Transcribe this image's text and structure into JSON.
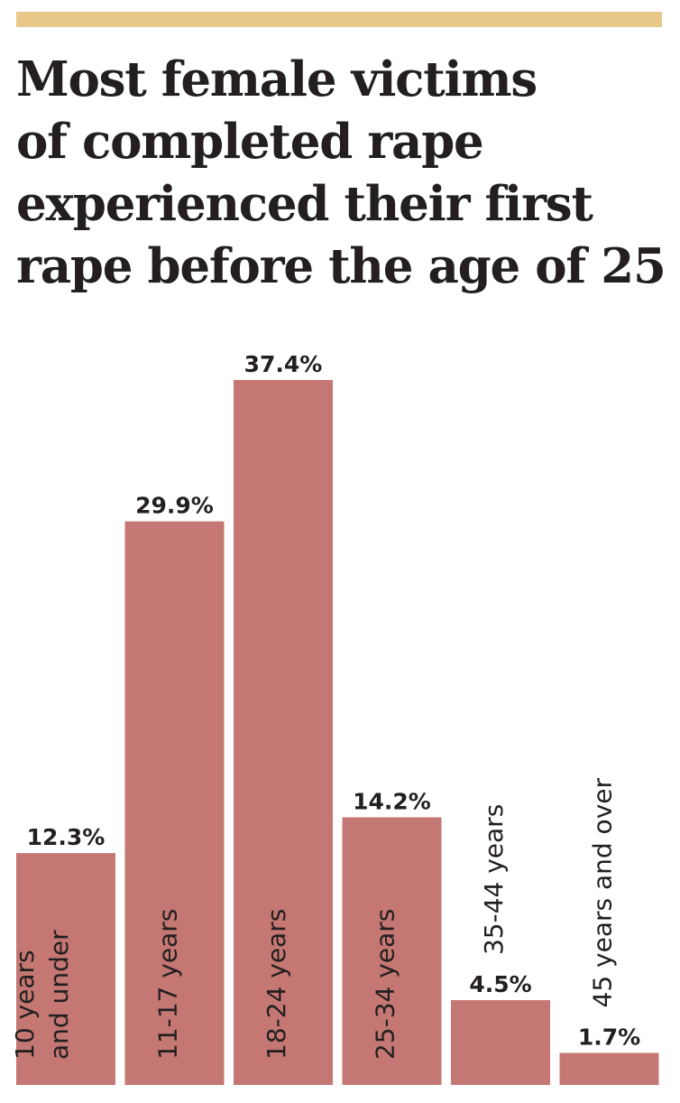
{
  "title": "Most female victims\nof completed rape\nexperienced their first\nrape before the age of 25",
  "colors": {
    "bar": "#c57873",
    "accent_rule": "#e8c98a",
    "text": "#231f20"
  },
  "chart_data": {
    "type": "bar",
    "title": "Most female victims of completed rape experienced their first rape before the age of 25",
    "categories": [
      [
        "10 years",
        "and under"
      ],
      [
        "11-17 years"
      ],
      [
        "18-24 years"
      ],
      [
        "25-34 years"
      ],
      [
        "35-44 years"
      ],
      [
        "45 years and over"
      ]
    ],
    "values": [
      12.3,
      29.9,
      37.4,
      14.2,
      4.5,
      1.7
    ],
    "value_labels": [
      "12.3%",
      "29.9%",
      "37.4%",
      "14.2%",
      "4.5%",
      "1.7%"
    ],
    "label_position": [
      "inside",
      "inside",
      "inside",
      "inside",
      "above",
      "above"
    ],
    "xlabel": "",
    "ylabel": "",
    "ylim": [
      0,
      37.4
    ],
    "grid": false,
    "legend": "none"
  }
}
